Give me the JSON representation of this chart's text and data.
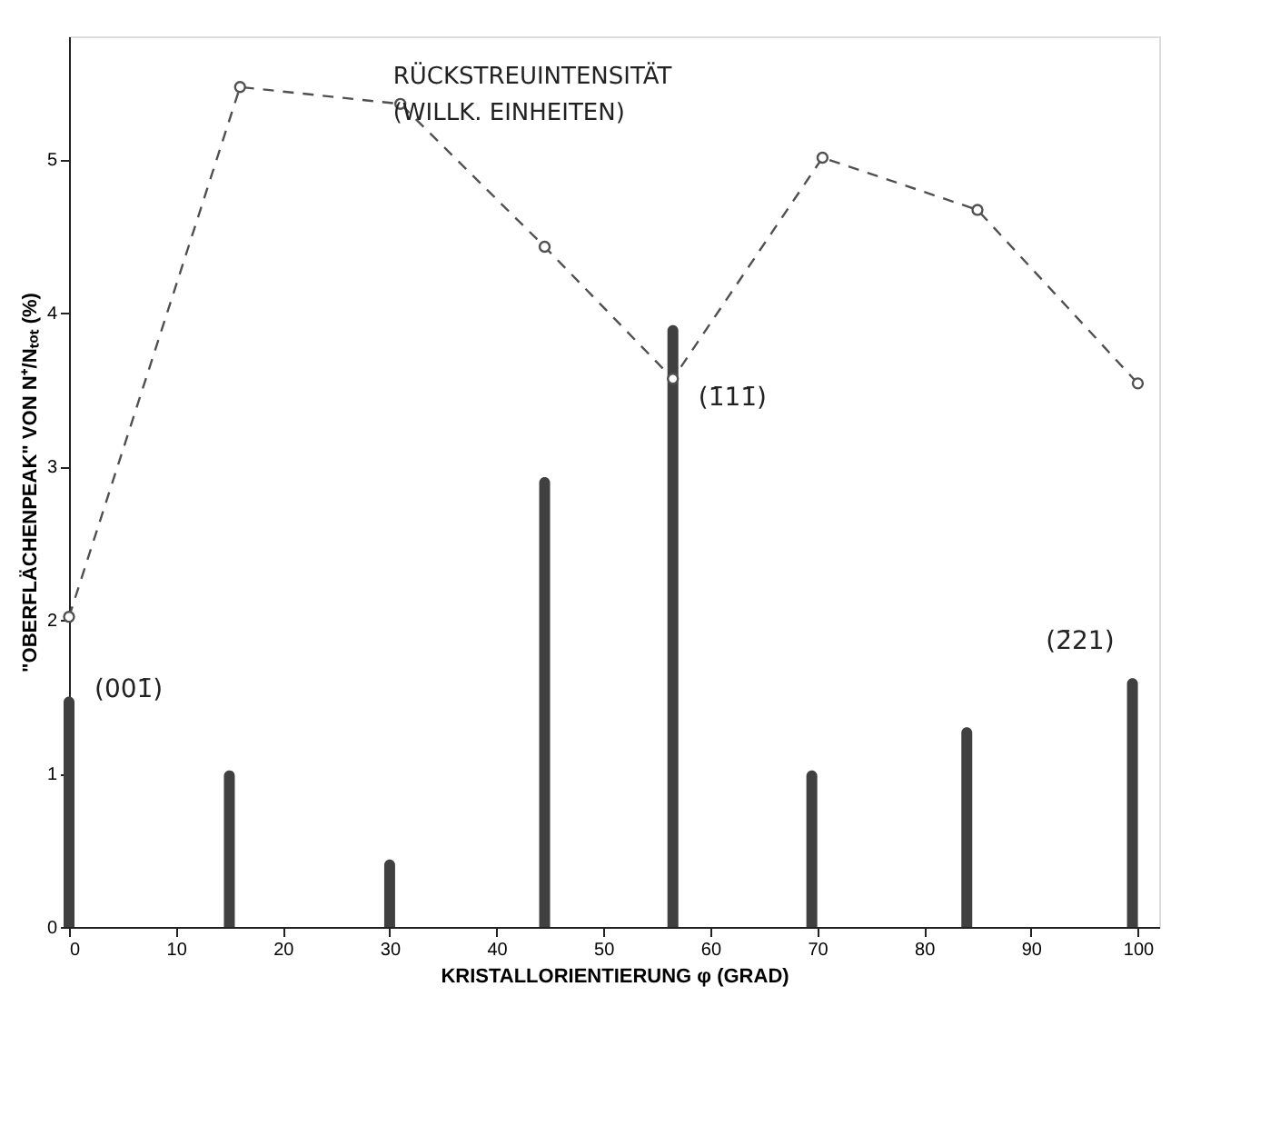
{
  "chart_data": {
    "type": "bar",
    "xlabel": "KRISTALLORIENTIERUNG φ (GRAD)",
    "ylabel": "\"OBERFLÄCHENPEAK\" VON N⁺/Nₜₒₜ (%)",
    "x": [
      0,
      15,
      30,
      44.5,
      56.5,
      69.5,
      84,
      99.5
    ],
    "series": [
      {
        "color": "#404040",
        "values": [
          1.5,
          1.02,
          0.44,
          2.93,
          3.92,
          1.02,
          1.3,
          1.62
        ]
      },
      {
        "type": "line",
        "name": "RÜCKSTREUINTENSITÄT (WILLK. EINHEITEN)",
        "color": "#505050",
        "line_style": "dashed",
        "marker": "circle",
        "x": [
          0,
          16,
          31,
          44.5,
          56.5,
          70.5,
          85,
          100
        ],
        "values": [
          2.02,
          5.47,
          5.36,
          4.43,
          3.57,
          5.01,
          4.67,
          3.54
        ]
      }
    ],
    "annotations": [
      {
        "text": "(001̄)",
        "x": 0,
        "y": 1.5
      },
      {
        "text": "(1̄11̄)",
        "x": 56.5,
        "y": 3.92
      },
      {
        "text": "(2̄21)",
        "x": 99.5,
        "y": 1.62
      }
    ],
    "xlim": [
      0,
      102
    ],
    "ylim": [
      0,
      5.8
    ],
    "xticks": [
      0,
      10,
      20,
      30,
      40,
      50,
      60,
      70,
      80,
      90,
      100
    ],
    "yticks": [
      0,
      1,
      2,
      3,
      4,
      5
    ],
    "grid": false
  }
}
